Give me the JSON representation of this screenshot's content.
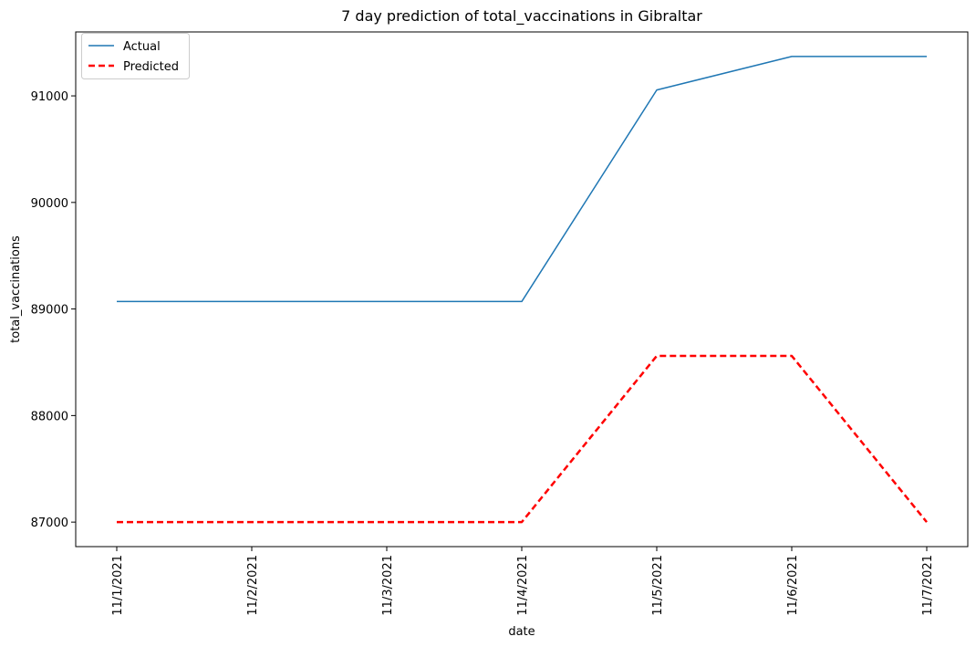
{
  "chart_data": {
    "type": "line",
    "title": "7 day prediction of total_vaccinations in Gibraltar",
    "xlabel": "date",
    "ylabel": "total_vaccinations",
    "categories": [
      "11/1/2021",
      "11/2/2021",
      "11/3/2021",
      "11/4/2021",
      "11/5/2021",
      "11/6/2021",
      "11/7/2021"
    ],
    "yticks": [
      87000,
      88000,
      89000,
      90000,
      91000
    ],
    "ylim": [
      86770,
      91600
    ],
    "grid": false,
    "legend_position": "top-left",
    "series": [
      {
        "name": "Actual",
        "values": [
          89070,
          89070,
          89070,
          89070,
          91055,
          91370,
          91370
        ],
        "color": "#1f77b4",
        "style": "solid"
      },
      {
        "name": "Predicted",
        "values": [
          87000,
          87000,
          87000,
          87000,
          88560,
          88560,
          87000
        ],
        "color": "#ff0000",
        "style": "dashed"
      }
    ]
  }
}
